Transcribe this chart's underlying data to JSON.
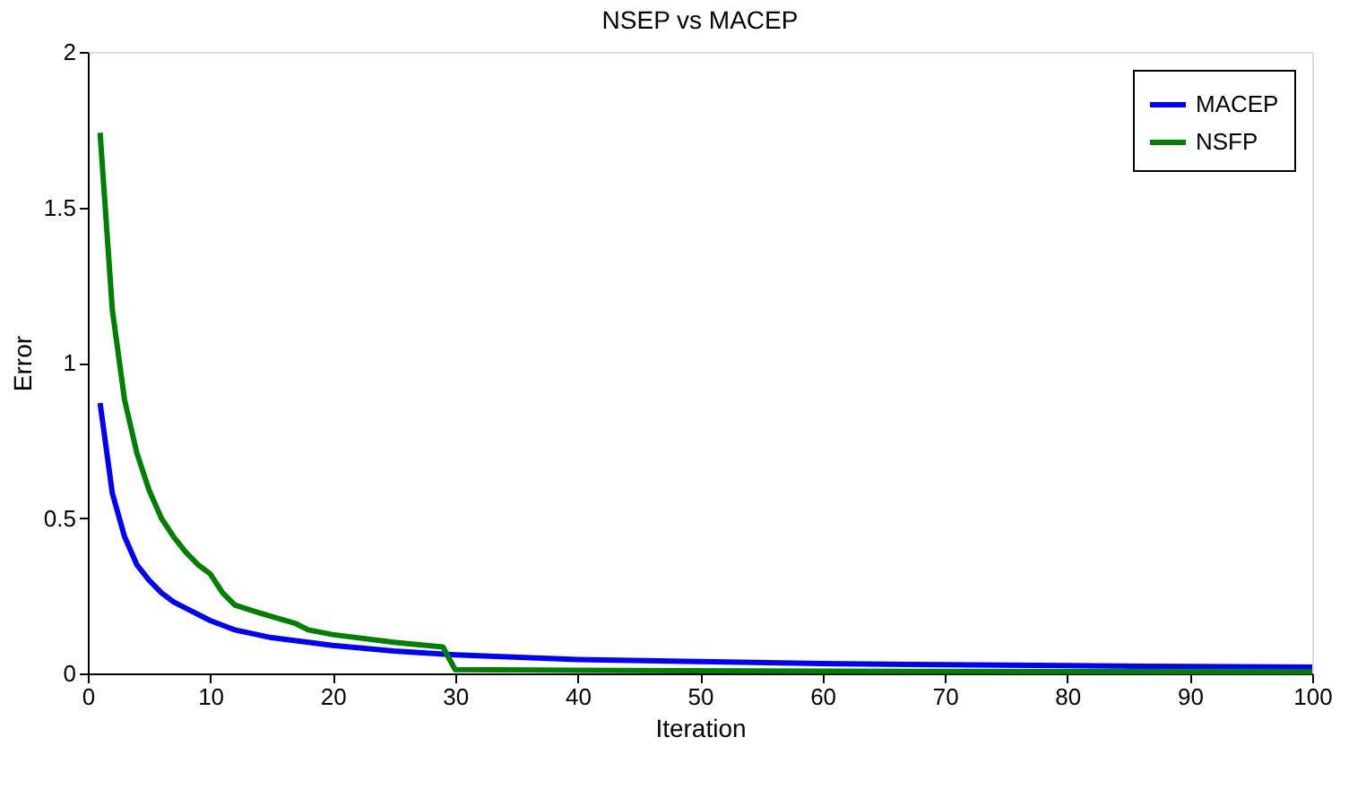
{
  "chart_data": {
    "type": "line",
    "title": "NSEP vs MACEP",
    "xlabel": "Iteration",
    "ylabel": "Error",
    "xlim": [
      0,
      100
    ],
    "ylim": [
      0,
      2
    ],
    "xticks": [
      0,
      10,
      20,
      30,
      40,
      50,
      60,
      70,
      80,
      90,
      100
    ],
    "yticks": [
      0,
      0.5,
      1,
      1.5,
      2
    ],
    "grid": false,
    "legend": "top right",
    "marker": "none",
    "line_style": "solid",
    "series": [
      {
        "name": "MACEP",
        "color": "#0000ff",
        "x": [
          1,
          2,
          3,
          4,
          5,
          6,
          7,
          8,
          10,
          12,
          15,
          20,
          25,
          30,
          40,
          50,
          60,
          70,
          80,
          90,
          100
        ],
        "values": [
          0.87,
          0.58,
          0.44,
          0.35,
          0.3,
          0.26,
          0.23,
          0.21,
          0.17,
          0.14,
          0.115,
          0.09,
          0.072,
          0.06,
          0.045,
          0.038,
          0.032,
          0.028,
          0.025,
          0.022,
          0.02
        ]
      },
      {
        "name": "NSFP",
        "color": "#008000",
        "x": [
          1,
          2,
          3,
          4,
          5,
          6,
          7,
          8,
          9,
          10,
          11,
          12,
          14,
          17,
          18,
          20,
          25,
          29,
          30,
          40,
          60,
          100
        ],
        "values": [
          1.74,
          1.17,
          0.88,
          0.71,
          0.59,
          0.5,
          0.44,
          0.39,
          0.35,
          0.32,
          0.26,
          0.22,
          0.195,
          0.16,
          0.14,
          0.125,
          0.1,
          0.085,
          0.012,
          0.01,
          0.007,
          0.005
        ]
      }
    ]
  }
}
